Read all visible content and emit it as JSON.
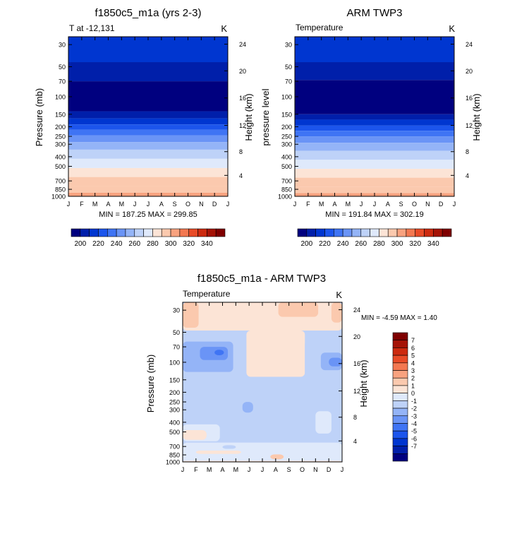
{
  "chart_data": [
    {
      "type": "heatmap",
      "title": "f1850c5_m1a (yrs 2-3)",
      "left_string": "T at -12,131",
      "right_string": "K",
      "xlabel": "",
      "ylabel": "Pressure (mb)",
      "ylabel_right": "Height (km)",
      "x": [
        "J",
        "F",
        "M",
        "A",
        "M",
        "J",
        "J",
        "A",
        "S",
        "O",
        "N",
        "D",
        "J"
      ],
      "y_ticks": [
        30,
        50,
        70,
        100,
        150,
        200,
        250,
        300,
        400,
        500,
        700,
        850,
        1000
      ],
      "y_ticks_right": [
        24,
        20,
        16,
        12,
        8,
        4
      ],
      "ylim": [
        1000,
        25
      ],
      "value_range": [
        187.25,
        299.85
      ],
      "min_max_text": "MIN = 187.25 MAX = 299.85",
      "levels": [
        {
          "p_lo": 25,
          "p_hi": 45,
          "value": 210
        },
        {
          "p_lo": 45,
          "p_hi": 70,
          "value": 200
        },
        {
          "p_lo": 70,
          "p_hi": 140,
          "value": 190
        },
        {
          "p_lo": 140,
          "p_hi": 165,
          "value": 200
        },
        {
          "p_lo": 165,
          "p_hi": 190,
          "value": 210
        },
        {
          "p_lo": 190,
          "p_hi": 215,
          "value": 220
        },
        {
          "p_lo": 215,
          "p_hi": 245,
          "value": 230
        },
        {
          "p_lo": 245,
          "p_hi": 285,
          "value": 240
        },
        {
          "p_lo": 285,
          "p_hi": 340,
          "value": 250
        },
        {
          "p_lo": 340,
          "p_hi": 420,
          "value": 260
        },
        {
          "p_lo": 420,
          "p_hi": 520,
          "value": 270
        },
        {
          "p_lo": 520,
          "p_hi": 640,
          "value": 280
        },
        {
          "p_lo": 640,
          "p_hi": 790,
          "value": 290
        },
        {
          "p_lo": 790,
          "p_hi": 920,
          "value": 290
        },
        {
          "p_lo": 920,
          "p_hi": 1000,
          "value": 300
        }
      ]
    },
    {
      "type": "heatmap",
      "title": "ARM TWP3",
      "left_string": "Temperature",
      "right_string": "K",
      "xlabel": "",
      "ylabel": "pressure level",
      "ylabel_right": "Height (km)",
      "x": [
        "J",
        "F",
        "M",
        "A",
        "M",
        "J",
        "J",
        "A",
        "S",
        "O",
        "N",
        "D",
        "J"
      ],
      "y_ticks": [
        30,
        50,
        70,
        100,
        150,
        200,
        250,
        300,
        400,
        500,
        700,
        850,
        1000
      ],
      "y_ticks_right": [
        24,
        20,
        16,
        12,
        8,
        4
      ],
      "ylim": [
        1000,
        25
      ],
      "value_range": [
        191.84,
        302.19
      ],
      "min_max_text": "MIN = 191.84 MAX = 302.19",
      "levels": [
        {
          "p_lo": 25,
          "p_hi": 45,
          "value": 210
        },
        {
          "p_lo": 45,
          "p_hi": 68,
          "value": 200
        },
        {
          "p_lo": 68,
          "p_hi": 150,
          "value": 190
        },
        {
          "p_lo": 150,
          "p_hi": 170,
          "value": 200
        },
        {
          "p_lo": 170,
          "p_hi": 195,
          "value": 210
        },
        {
          "p_lo": 195,
          "p_hi": 220,
          "value": 220
        },
        {
          "p_lo": 220,
          "p_hi": 250,
          "value": 230
        },
        {
          "p_lo": 250,
          "p_hi": 290,
          "value": 240
        },
        {
          "p_lo": 290,
          "p_hi": 350,
          "value": 250
        },
        {
          "p_lo": 350,
          "p_hi": 430,
          "value": 260
        },
        {
          "p_lo": 430,
          "p_hi": 530,
          "value": 270
        },
        {
          "p_lo": 530,
          "p_hi": 650,
          "value": 280
        },
        {
          "p_lo": 650,
          "p_hi": 800,
          "value": 290
        },
        {
          "p_lo": 800,
          "p_hi": 930,
          "value": 290
        },
        {
          "p_lo": 930,
          "p_hi": 1000,
          "value": 300
        }
      ]
    },
    {
      "type": "heatmap",
      "title": "f1850c5_m1a - ARM TWP3",
      "left_string": "Temperature",
      "right_string": "K",
      "xlabel": "",
      "ylabel": "Pressure (mb)",
      "ylabel_right": "Height (km)",
      "x": [
        "J",
        "F",
        "M",
        "A",
        "M",
        "J",
        "J",
        "A",
        "S",
        "O",
        "N",
        "D",
        "J"
      ],
      "y_ticks": [
        30,
        50,
        70,
        100,
        150,
        200,
        250,
        300,
        400,
        500,
        700,
        850,
        1000
      ],
      "y_ticks_right": [
        24,
        20,
        16,
        12,
        8,
        4
      ],
      "ylim": [
        1000,
        25
      ],
      "value_range": [
        -4.59,
        1.4
      ],
      "min_max_text": "MIN =  -4.59 MAX =   1.40",
      "background_value": -2.5,
      "regions": [
        {
          "x0": 0,
          "x1": 12,
          "p_lo": 25,
          "p_hi": 48,
          "value": -0.5
        },
        {
          "x0": 0,
          "x1": 1.2,
          "p_lo": 25,
          "p_hi": 45,
          "value": 0.5
        },
        {
          "x0": 7.2,
          "x1": 10.2,
          "p_lo": 25,
          "p_hi": 35,
          "value": 0.5
        },
        {
          "x0": 11.2,
          "x1": 12,
          "p_lo": 25,
          "p_hi": 40,
          "value": 0.5
        },
        {
          "x0": 0,
          "x1": 4.6,
          "p_lo": 48,
          "p_hi": 160,
          "value": -2.5
        },
        {
          "x0": 0,
          "x1": 3.8,
          "p_lo": 62,
          "p_hi": 125,
          "value": -3.5
        },
        {
          "x0": 1.3,
          "x1": 3.4,
          "p_lo": 70,
          "p_hi": 95,
          "value": -4.5
        },
        {
          "x0": 2.4,
          "x1": 3.1,
          "p_lo": 75,
          "p_hi": 85,
          "value": -5.5
        },
        {
          "x0": 4.8,
          "x1": 9.2,
          "p_lo": 48,
          "p_hi": 140,
          "value": -0.5
        },
        {
          "x0": 9.2,
          "x1": 12,
          "p_lo": 60,
          "p_hi": 180,
          "value": -2.5
        },
        {
          "x0": 10.4,
          "x1": 12,
          "p_lo": 80,
          "p_hi": 120,
          "value": -3.5
        },
        {
          "x0": 11.0,
          "x1": 12,
          "p_lo": 90,
          "p_hi": 110,
          "value": -4.5
        },
        {
          "x0": 4.5,
          "x1": 5.3,
          "p_lo": 250,
          "p_hi": 320,
          "value": -3.5
        },
        {
          "x0": 10.0,
          "x1": 11.2,
          "p_lo": 310,
          "p_hi": 520,
          "value": -1.5
        },
        {
          "x0": 0,
          "x1": 2.8,
          "p_lo": 420,
          "p_hi": 620,
          "value": -1.5
        },
        {
          "x0": 0,
          "x1": 1.8,
          "p_lo": 480,
          "p_hi": 600,
          "value": -0.5
        },
        {
          "x0": 0,
          "x1": 12,
          "p_lo": 640,
          "p_hi": 1000,
          "value": -1.5
        },
        {
          "x0": 1.0,
          "x1": 4.4,
          "p_lo": 770,
          "p_hi": 830,
          "value": -0.5
        },
        {
          "x0": 3.0,
          "x1": 4.0,
          "p_lo": 680,
          "p_hi": 740,
          "value": -2.5
        },
        {
          "x0": 6.6,
          "x1": 7.6,
          "p_lo": 840,
          "p_hi": 940,
          "value": 0.5
        },
        {
          "x0": 0,
          "x1": 12,
          "p_lo": 975,
          "p_hi": 1000,
          "value": -0.5
        }
      ]
    }
  ],
  "colorbar_top": {
    "labels": [
      "200",
      "220",
      "240",
      "260",
      "280",
      "300",
      "320",
      "340"
    ],
    "levels": [
      190,
      200,
      210,
      220,
      230,
      240,
      250,
      260,
      270,
      280,
      290,
      300,
      310,
      320,
      330,
      340,
      350
    ]
  },
  "colorbar_diff": {
    "labels": [
      "7",
      "6",
      "5",
      "4",
      "3",
      "2",
      "1",
      "0",
      "-1",
      "-2",
      "-3",
      "-4",
      "-5",
      "-6",
      "-7"
    ],
    "levels": [
      7.5,
      6.5,
      5.5,
      4.5,
      3.5,
      2.5,
      1.5,
      0.5,
      -0.5,
      -1.5,
      -2.5,
      -3.5,
      -4.5,
      -5.5,
      -6.5,
      -7.5
    ]
  },
  "colors": {
    "palette_temp": [
      "#00007f",
      "#001faa",
      "#0036d0",
      "#1c55ec",
      "#3f74f4",
      "#6a94f6",
      "#94b4f7",
      "#bed2f8",
      "#dfe9fb",
      "#fce4d6",
      "#fbc9ae",
      "#f8a27f",
      "#f37851",
      "#e84b27",
      "#cc2a0f",
      "#a51306",
      "#7f0000"
    ],
    "palette_diff": [
      "#7f0000",
      "#a51306",
      "#cc2a0f",
      "#e84b27",
      "#f37851",
      "#f8a27f",
      "#fbc9ae",
      "#fce4d6",
      "#dfe9fb",
      "#bed2f8",
      "#94b4f7",
      "#6a94f6",
      "#3f74f4",
      "#1c55ec",
      "#0036d0",
      "#001faa",
      "#00007f"
    ]
  }
}
